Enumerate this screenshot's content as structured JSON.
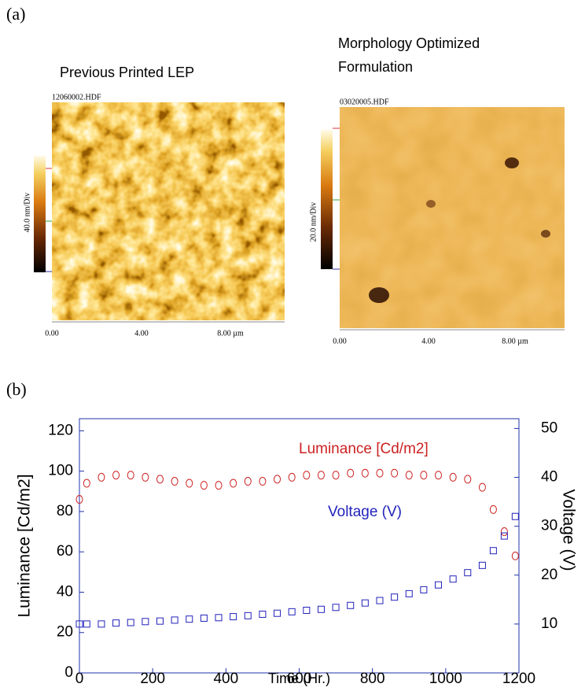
{
  "panel_a": {
    "label": "(a)",
    "images": [
      {
        "title": [
          "Previous Printed LEP"
        ],
        "file": "12060002.HDF",
        "scale": "40.0 nm/Div",
        "xticks": [
          "0.00",
          "4.00",
          "8.00 µm"
        ]
      },
      {
        "title": [
          "Morphology Optimized",
          "Formulation"
        ],
        "file": "03020005.HDF",
        "scale": "20.0 nm/Div",
        "xticks": [
          "0.00",
          "4.00",
          "8.00 µm"
        ]
      }
    ]
  },
  "chart_data": {
    "type": "scatter",
    "panel_label": "(b)",
    "x_label": "Time (Hr.)",
    "y_label": "Luminance [Cd/m2]",
    "y2_label": "Voltage (V)",
    "x": [
      0,
      20,
      60,
      100,
      140,
      180,
      220,
      260,
      300,
      340,
      380,
      420,
      460,
      500,
      540,
      580,
      620,
      660,
      700,
      740,
      780,
      820,
      860,
      900,
      940,
      980,
      1020,
      1060,
      1100,
      1130,
      1160,
      1190
    ],
    "series": [
      {
        "name": "Luminance [Cd/m2]",
        "color": "#cc2222",
        "marker": "circle",
        "values": [
          86,
          94,
          97,
          98,
          98,
          97,
          96,
          95,
          94,
          93,
          93,
          94,
          95,
          95,
          96,
          97,
          98,
          98,
          98,
          99,
          99,
          99,
          99,
          98,
          98,
          98,
          97,
          96,
          92,
          81,
          70,
          58
        ]
      },
      {
        "name": "Voltage (V)",
        "color": "#2222bb",
        "marker": "square",
        "axis": "y2",
        "values": [
          10,
          10,
          10,
          10.2,
          10.3,
          10.5,
          10.6,
          10.8,
          11,
          11.2,
          11.3,
          11.5,
          11.7,
          12,
          12.2,
          12.5,
          12.8,
          13,
          13.4,
          13.8,
          14.3,
          14.8,
          15.5,
          16.2,
          17,
          18,
          19.2,
          20.5,
          22,
          25,
          28,
          32
        ]
      }
    ],
    "xlim": [
      0,
      1200
    ],
    "xticks": [
      0,
      200,
      400,
      600,
      800,
      1000,
      1200
    ],
    "ylim": [
      0,
      126
    ],
    "yticks": [
      0,
      20,
      40,
      60,
      80,
      100,
      120
    ],
    "y2lim": [
      0,
      52
    ],
    "y2ticks": [
      10,
      20,
      30,
      40,
      50
    ],
    "frame_color": "#2233aa"
  }
}
